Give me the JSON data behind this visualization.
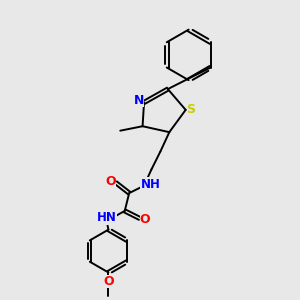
{
  "bg_color": "#e8e8e8",
  "line_color": "#000000",
  "N_color": "#0000ff",
  "O_color": "#ff0000",
  "S_color": "#cccc00",
  "figsize": [
    3.0,
    3.0
  ],
  "dpi": 100,
  "xlim": [
    0,
    10
  ],
  "ylim": [
    0,
    10
  ],
  "lw": 1.4,
  "fs": 8.5
}
